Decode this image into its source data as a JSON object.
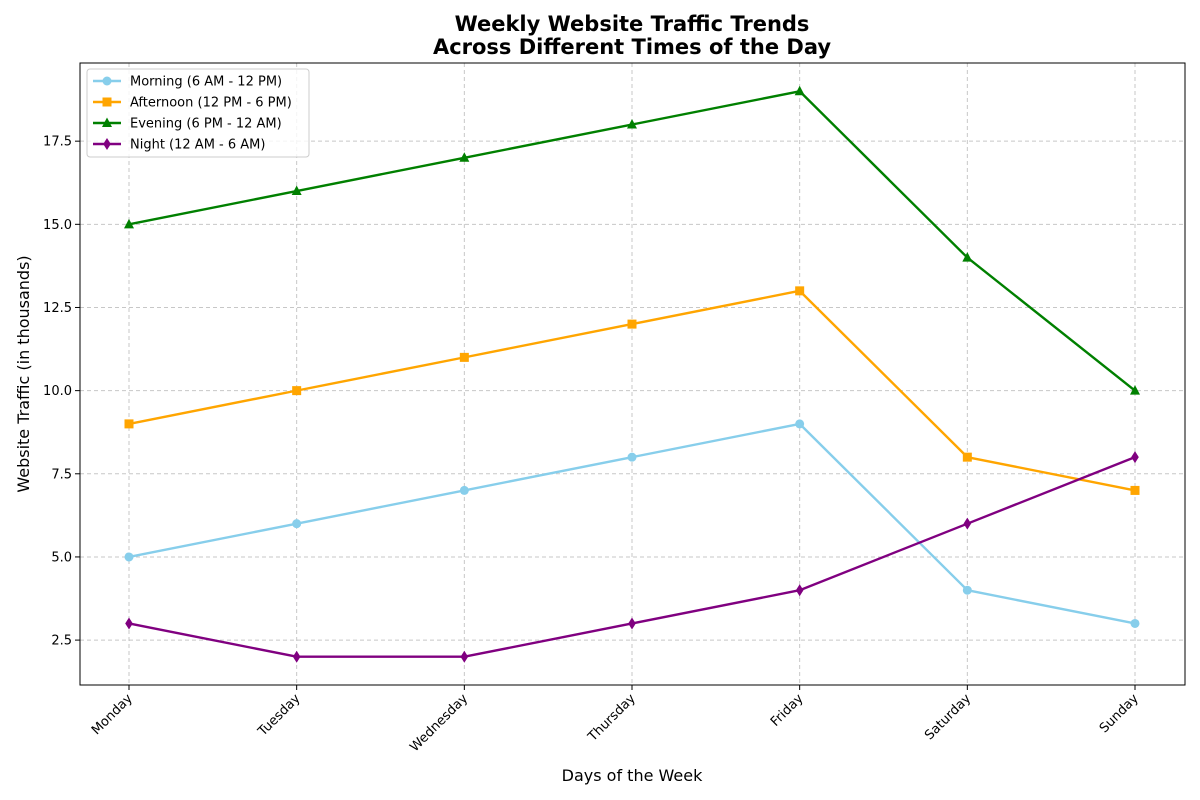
{
  "chart_data": {
    "type": "line",
    "title": [
      "Weekly Website Traffic Trends",
      "Across Different Times of the Day"
    ],
    "xlabel": "Days of the Week",
    "ylabel": "Website Traffic (in thousands)",
    "categories": [
      "Monday",
      "Tuesday",
      "Wednesday",
      "Thursday",
      "Friday",
      "Saturday",
      "Sunday"
    ],
    "ylim": [
      1.15,
      19.85
    ],
    "yticks": [
      2.5,
      5.0,
      7.5,
      10.0,
      12.5,
      15.0,
      17.5
    ],
    "ytick_labels": [
      "2.5",
      "5.0",
      "7.5",
      "10.0",
      "12.5",
      "15.0",
      "17.5"
    ],
    "grid": true,
    "legend_position": "upper-left",
    "series": [
      {
        "name": "Morning (6 AM - 12 PM)",
        "color": "#87ceeb",
        "marker": "circle",
        "values": [
          5,
          6,
          7,
          8,
          9,
          4,
          3
        ]
      },
      {
        "name": "Afternoon (12 PM - 6 PM)",
        "color": "#ffa500",
        "marker": "square",
        "values": [
          9,
          10,
          11,
          12,
          13,
          8,
          7
        ]
      },
      {
        "name": "Evening (6 PM - 12 AM)",
        "color": "#008000",
        "marker": "triangle",
        "values": [
          15,
          16,
          17,
          18,
          19,
          14,
          10
        ]
      },
      {
        "name": "Night (12 AM - 6 AM)",
        "color": "#800080",
        "marker": "diamond",
        "values": [
          3,
          2,
          2,
          3,
          4,
          6,
          8
        ]
      }
    ]
  }
}
